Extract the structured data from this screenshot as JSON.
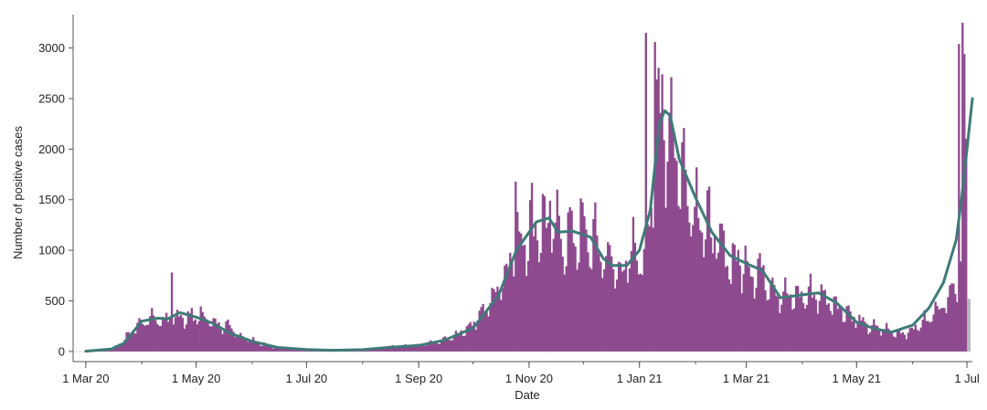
{
  "colors": {
    "bars": "#8e4a8f",
    "provisional_bars": "#b8b8b8",
    "average_line": "#3f7a78",
    "axis": "#555555",
    "baseline": "#9a9a9a"
  },
  "chart_data": {
    "type": "bar",
    "xlabel": "Date",
    "ylabel": "Number of positive cases",
    "xlim": [
      "2020-02-23",
      "2021-07-04"
    ],
    "ylim": [
      -100,
      3330
    ],
    "yticks": [
      0,
      500,
      1000,
      1500,
      2000,
      2500,
      3000
    ],
    "xticks": [
      {
        "date": "2020-03-01",
        "label": "1 Mar 20"
      },
      {
        "date": "2020-05-01",
        "label": "1 May 20"
      },
      {
        "date": "2020-07-01",
        "label": "1 Jul 20"
      },
      {
        "date": "2020-09-01",
        "label": "1 Sep 20"
      },
      {
        "date": "2020-11-01",
        "label": "1 Nov 20"
      },
      {
        "date": "2021-01-01",
        "label": "1 Jan 21"
      },
      {
        "date": "2021-03-01",
        "label": "1 Mar 21"
      },
      {
        "date": "2021-05-01",
        "label": "1 May 21"
      },
      {
        "date": "2021-07-01",
        "label": "1 Jul"
      }
    ],
    "grid": false,
    "legend": "none",
    "daily_cases_anchors": [
      [
        "2020-03-01",
        2
      ],
      [
        "2020-03-08",
        5
      ],
      [
        "2020-03-15",
        30
      ],
      [
        "2020-03-22",
        120
      ],
      [
        "2020-03-29",
        260
      ],
      [
        "2020-04-05",
        340
      ],
      [
        "2020-04-12",
        320
      ],
      [
        "2020-04-19",
        330
      ],
      [
        "2020-04-26",
        360
      ],
      [
        "2020-05-03",
        350
      ],
      [
        "2020-05-10",
        300
      ],
      [
        "2020-05-17",
        240
      ],
      [
        "2020-05-24",
        170
      ],
      [
        "2020-05-31",
        110
      ],
      [
        "2020-06-07",
        70
      ],
      [
        "2020-06-14",
        40
      ],
      [
        "2020-06-21",
        25
      ],
      [
        "2020-06-28",
        20
      ],
      [
        "2020-07-05",
        15
      ],
      [
        "2020-07-12",
        12
      ],
      [
        "2020-07-19",
        12
      ],
      [
        "2020-07-26",
        15
      ],
      [
        "2020-08-02",
        20
      ],
      [
        "2020-08-09",
        30
      ],
      [
        "2020-08-16",
        45
      ],
      [
        "2020-08-23",
        55
      ],
      [
        "2020-08-30",
        60
      ],
      [
        "2020-09-06",
        80
      ],
      [
        "2020-09-13",
        110
      ],
      [
        "2020-09-20",
        160
      ],
      [
        "2020-09-27",
        230
      ],
      [
        "2020-10-04",
        350
      ],
      [
        "2020-10-11",
        550
      ],
      [
        "2020-10-18",
        800
      ],
      [
        "2020-10-25",
        1100
      ],
      [
        "2020-11-01",
        1250
      ],
      [
        "2020-11-08",
        1300
      ],
      [
        "2020-11-15",
        1180
      ],
      [
        "2020-11-22",
        1150
      ],
      [
        "2020-11-29",
        1200
      ],
      [
        "2020-12-06",
        1100
      ],
      [
        "2020-12-13",
        950
      ],
      [
        "2020-12-20",
        820
      ],
      [
        "2020-12-27",
        900
      ],
      [
        "2021-01-03",
        980
      ],
      [
        "2021-01-10",
        2100
      ],
      [
        "2021-01-17",
        2350
      ],
      [
        "2021-01-24",
        1800
      ],
      [
        "2021-01-31",
        1500
      ],
      [
        "2021-02-07",
        1250
      ],
      [
        "2021-02-14",
        1050
      ],
      [
        "2021-02-21",
        920
      ],
      [
        "2021-02-28",
        880
      ],
      [
        "2021-03-07",
        820
      ],
      [
        "2021-03-14",
        700
      ],
      [
        "2021-03-21",
        560
      ],
      [
        "2021-03-28",
        540
      ],
      [
        "2021-04-04",
        580
      ],
      [
        "2021-04-11",
        560
      ],
      [
        "2021-04-18",
        500
      ],
      [
        "2021-04-25",
        400
      ],
      [
        "2021-05-02",
        300
      ],
      [
        "2021-05-09",
        240
      ],
      [
        "2021-05-16",
        220
      ],
      [
        "2021-05-23",
        190
      ],
      [
        "2021-05-30",
        200
      ],
      [
        "2021-06-06",
        290
      ],
      [
        "2021-06-13",
        420
      ],
      [
        "2021-06-20",
        560
      ],
      [
        "2021-06-27",
        800
      ],
      [
        "2021-07-04",
        1100
      ]
    ],
    "notable_daily_values": [
      [
        "2020-04-17",
        780
      ],
      [
        "2020-04-06",
        430
      ],
      [
        "2020-04-28",
        430
      ],
      [
        "2020-10-24",
        1680
      ],
      [
        "2020-11-12",
        1490
      ],
      [
        "2020-12-28",
        1330
      ],
      [
        "2021-01-04",
        3150
      ],
      [
        "2021-01-09",
        3060
      ],
      [
        "2021-01-13",
        2740
      ],
      [
        "2021-06-28",
        3250
      ],
      [
        "2021-06-26",
        3040
      ],
      [
        "2021-06-29",
        2940
      ],
      [
        "2021-06-30",
        2100
      ]
    ],
    "provisional_bar": {
      "date": "2021-07-01",
      "value": 520
    },
    "seven_day_average": [
      [
        "2020-03-01",
        3
      ],
      [
        "2020-03-15",
        25
      ],
      [
        "2020-03-22",
        80
      ],
      [
        "2020-04-01",
        300
      ],
      [
        "2020-04-10",
        330
      ],
      [
        "2020-04-15",
        320
      ],
      [
        "2020-04-22",
        385
      ],
      [
        "2020-05-01",
        340
      ],
      [
        "2020-05-10",
        280
      ],
      [
        "2020-05-20",
        180
      ],
      [
        "2020-06-01",
        100
      ],
      [
        "2020-06-15",
        40
      ],
      [
        "2020-07-01",
        20
      ],
      [
        "2020-07-15",
        12
      ],
      [
        "2020-08-01",
        18
      ],
      [
        "2020-08-15",
        40
      ],
      [
        "2020-09-01",
        60
      ],
      [
        "2020-09-15",
        110
      ],
      [
        "2020-10-01",
        230
      ],
      [
        "2020-10-15",
        550
      ],
      [
        "2020-10-25",
        1000
      ],
      [
        "2020-11-05",
        1280
      ],
      [
        "2020-11-12",
        1320
      ],
      [
        "2020-11-17",
        1180
      ],
      [
        "2020-11-25",
        1190
      ],
      [
        "2020-12-05",
        1130
      ],
      [
        "2020-12-12",
        920
      ],
      [
        "2020-12-17",
        850
      ],
      [
        "2020-12-25",
        850
      ],
      [
        "2021-01-01",
        1000
      ],
      [
        "2021-01-07",
        1400
      ],
      [
        "2021-01-12",
        2250
      ],
      [
        "2021-01-15",
        2380
      ],
      [
        "2021-01-18",
        2330
      ],
      [
        "2021-01-23",
        1900
      ],
      [
        "2021-02-01",
        1520
      ],
      [
        "2021-02-10",
        1180
      ],
      [
        "2021-02-20",
        950
      ],
      [
        "2021-03-01",
        870
      ],
      [
        "2021-03-10",
        800
      ],
      [
        "2021-03-20",
        530
      ],
      [
        "2021-04-01",
        560
      ],
      [
        "2021-04-10",
        580
      ],
      [
        "2021-04-20",
        480
      ],
      [
        "2021-05-01",
        290
      ],
      [
        "2021-05-10",
        230
      ],
      [
        "2021-05-20",
        190
      ],
      [
        "2021-06-01",
        260
      ],
      [
        "2021-06-10",
        430
      ],
      [
        "2021-06-18",
        680
      ],
      [
        "2021-06-25",
        1100
      ],
      [
        "2021-06-28",
        1500
      ],
      [
        "2021-07-01",
        2000
      ],
      [
        "2021-07-04",
        2500
      ]
    ]
  }
}
